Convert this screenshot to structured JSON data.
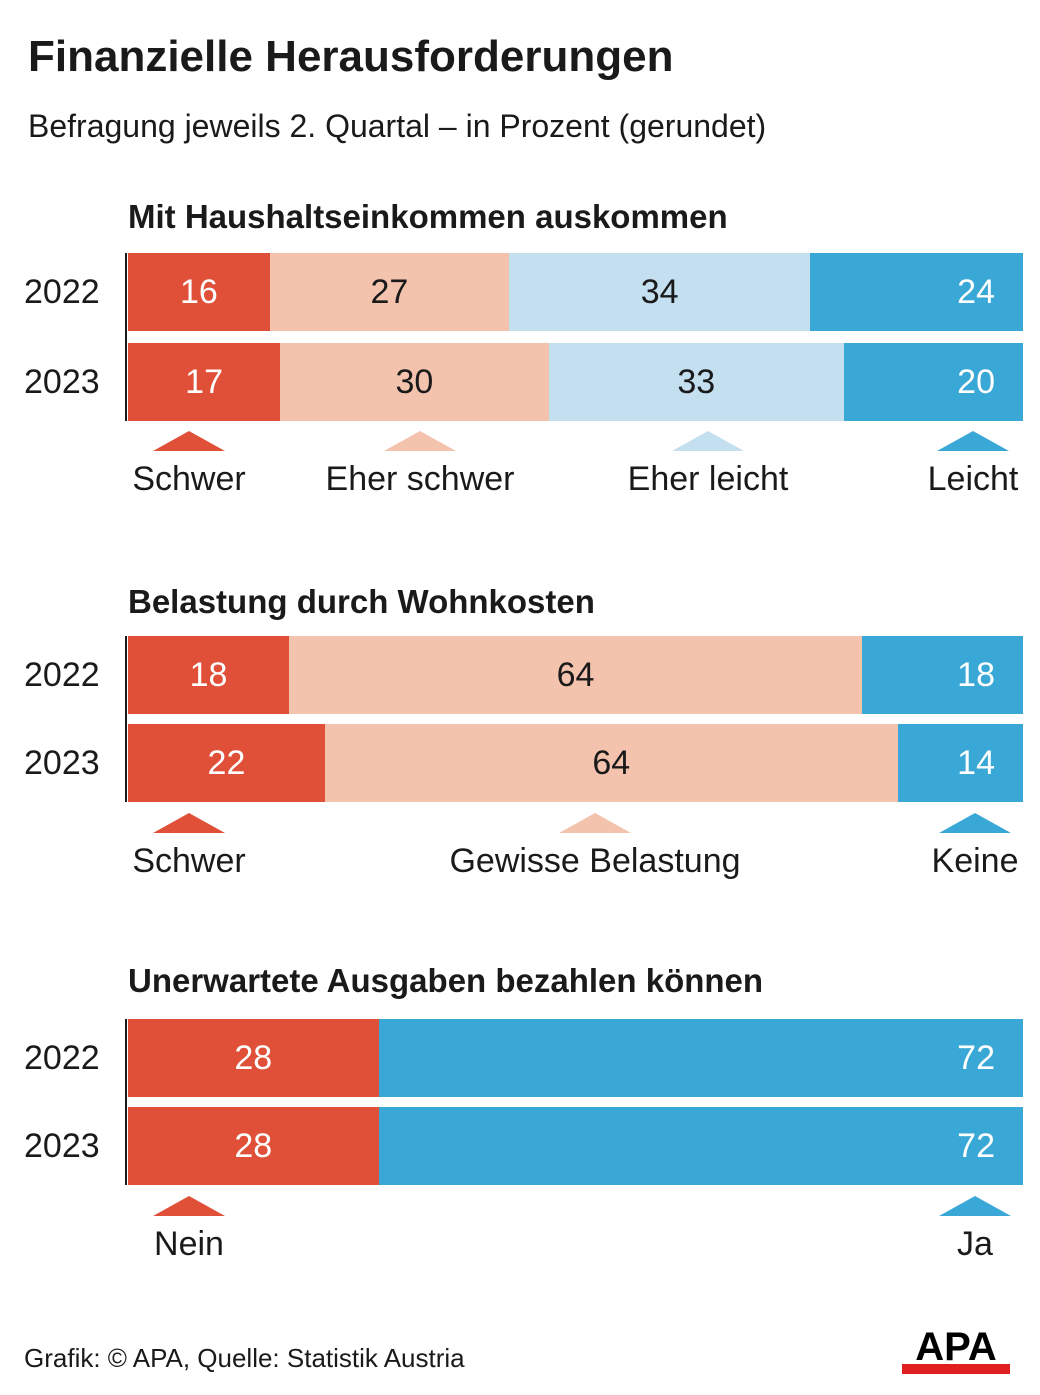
{
  "title": "Finanzielle Herausforderungen",
  "subtitle": "Befragung jeweils 2. Quartal – in Prozent (gerundet)",
  "colors": {
    "red": "#e05038",
    "light_red": "#f4c3ad",
    "light_blue": "#c4dff0",
    "blue": "#3aa8d6"
  },
  "chart_data": [
    {
      "type": "bar",
      "stacked": true,
      "orientation": "horizontal",
      "title": "Mit Haushaltseinkommen auskommen",
      "categories": [
        "2022",
        "2023"
      ],
      "series": [
        {
          "name": "Schwer",
          "color": "#e05038",
          "values": [
            16,
            17
          ],
          "labels": [
            "16",
            "17"
          ]
        },
        {
          "name": "Eher schwer",
          "color": "#f4c3ad",
          "values": [
            27,
            30
          ],
          "labels": [
            "27",
            "30"
          ]
        },
        {
          "name": "Eher leicht",
          "color": "#c4dff0",
          "values": [
            34,
            33
          ],
          "labels": [
            "34",
            "33"
          ]
        },
        {
          "name": "Leicht",
          "color": "#3aa8d6",
          "values": [
            24,
            20
          ],
          "labels": [
            "24",
            "20"
          ]
        }
      ]
    },
    {
      "type": "bar",
      "stacked": true,
      "orientation": "horizontal",
      "title": "Belastung durch Wohnkosten",
      "categories": [
        "2022",
        "2023"
      ],
      "series": [
        {
          "name": "Schwer",
          "color": "#e05038",
          "values": [
            18,
            22
          ],
          "labels": [
            "18",
            "22"
          ]
        },
        {
          "name": "Gewisse Belastung",
          "color": "#f4c3ad",
          "values": [
            64,
            64
          ],
          "labels": [
            "64",
            "64"
          ]
        },
        {
          "name": "Keine",
          "color": "#3aa8d6",
          "values": [
            18,
            14
          ],
          "labels": [
            "18",
            "14"
          ]
        }
      ]
    },
    {
      "type": "bar",
      "stacked": true,
      "orientation": "horizontal",
      "title": "Unerwartete Ausgaben bezahlen können",
      "categories": [
        "2022",
        "2023"
      ],
      "series": [
        {
          "name": "Nein",
          "color": "#e05038",
          "values": [
            28,
            28
          ],
          "labels": [
            "28",
            "28"
          ]
        },
        {
          "name": "Ja",
          "color": "#3aa8d6",
          "values": [
            72,
            72
          ],
          "labels": [
            "72",
            "72"
          ]
        }
      ]
    }
  ],
  "footer": "Grafik: © APA, Quelle: Statistik Austria",
  "logo_text": "APA"
}
